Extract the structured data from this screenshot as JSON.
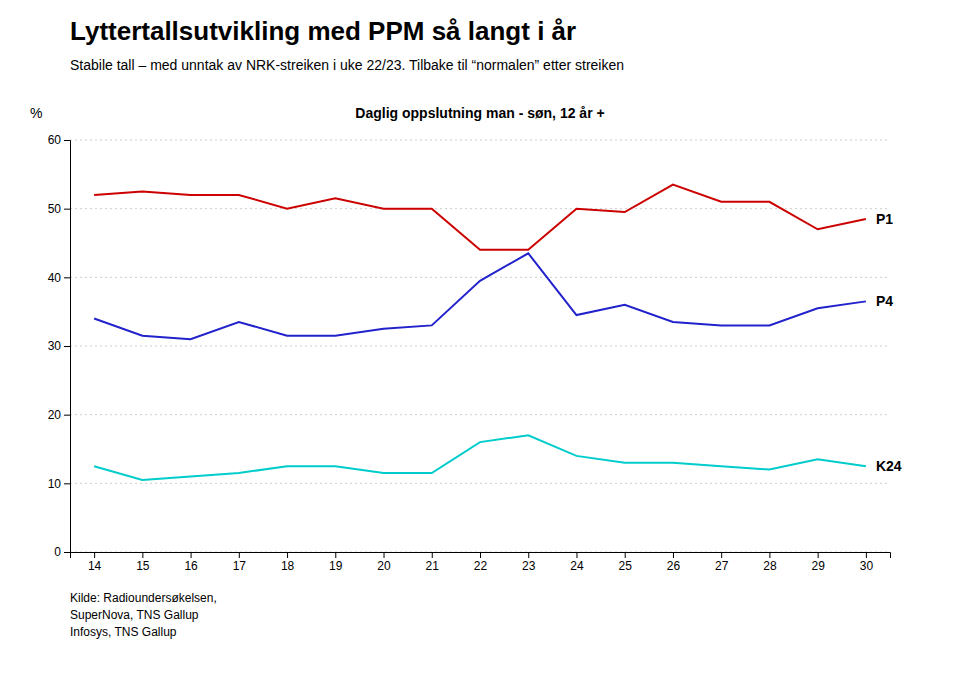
{
  "chart_data": {
    "type": "line",
    "title": "Lyttertallsutvikling med PPM så langt i år",
    "subtitle": "Stabile tall – med unntak av NRK-streiken i uke 22/23. Tilbake til “normalen” etter streiken",
    "plot_title": "Daglig oppslutning man - søn, 12 år +",
    "y_label": "%",
    "source": "Kilde: Radioundersøkelsen,\nSuperNova, TNS Gallup\nInfosys, TNS Gallup",
    "x": [
      14,
      15,
      16,
      17,
      18,
      19,
      20,
      21,
      22,
      23,
      24,
      25,
      26,
      27,
      28,
      29,
      30
    ],
    "series": [
      {
        "name": "P1",
        "color": "#cc0000",
        "values": [
          52,
          52.5,
          52,
          52,
          50,
          51.5,
          50,
          50,
          44,
          44,
          50,
          49.5,
          53.5,
          51,
          51,
          47,
          48.5
        ]
      },
      {
        "name": "P4",
        "color": "#2222cc",
        "values": [
          34,
          31.5,
          31,
          33.5,
          31.5,
          31.5,
          32.5,
          33,
          39.5,
          43.5,
          34.5,
          36,
          33.5,
          33,
          33,
          35.5,
          36.5
        ]
      },
      {
        "name": "K24",
        "color": "#00cccc",
        "values": [
          12.5,
          10.5,
          11,
          11.5,
          12.5,
          12.5,
          11.5,
          11.5,
          16,
          17,
          14,
          13,
          13,
          12.5,
          12,
          13.5,
          12.5
        ]
      }
    ],
    "xlim": [
      13.5,
      30.5
    ],
    "xticks": [
      14,
      15,
      16,
      17,
      18,
      19,
      20,
      21,
      22,
      23,
      24,
      25,
      26,
      27,
      28,
      29,
      30
    ],
    "ylim": [
      0,
      60
    ],
    "yticks": [
      0,
      10,
      20,
      30,
      40,
      50,
      60
    ],
    "grid": true
  }
}
